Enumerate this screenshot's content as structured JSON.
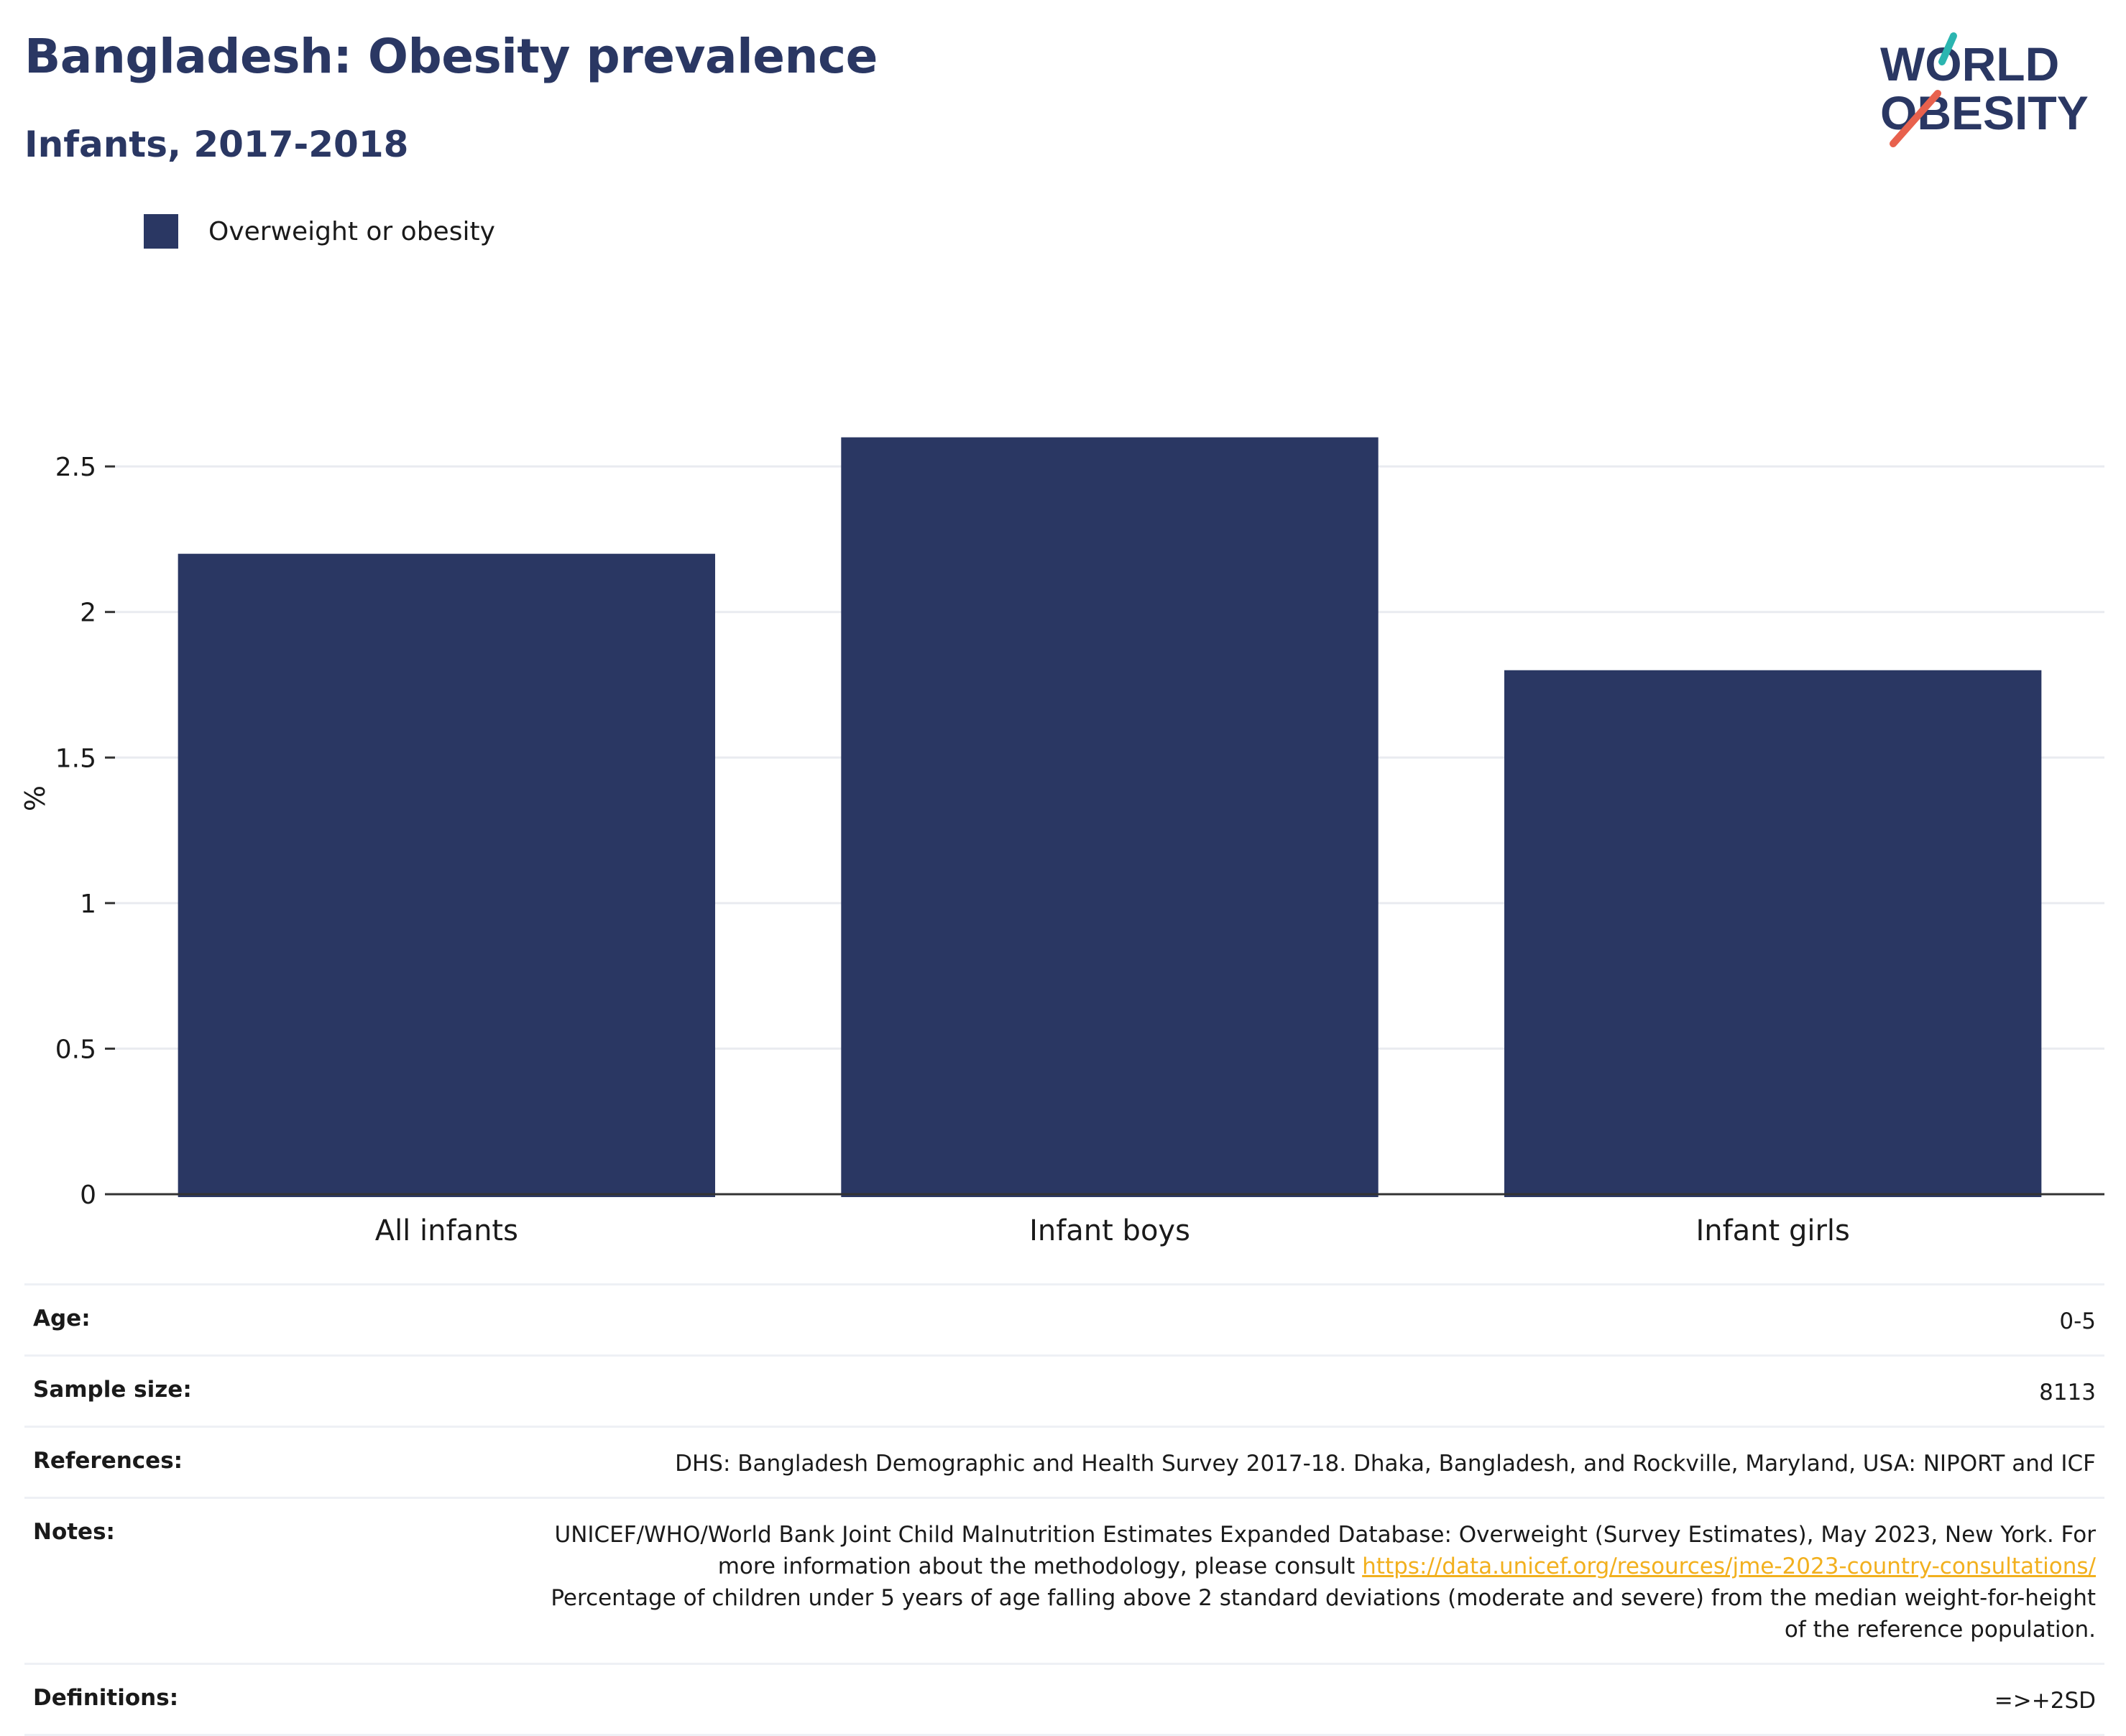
{
  "header": {
    "title": "Bangladesh: Obesity prevalence",
    "subtitle": "Infants, 2017-2018"
  },
  "logo": {
    "line1": "WORLD",
    "line2": "OBESITY",
    "colors": {
      "text": "#2a3763",
      "teal": "#2bb5b0",
      "coral": "#e8614d"
    }
  },
  "chart_data": {
    "type": "bar",
    "categories": [
      "All infants",
      "Infant boys",
      "Infant girls"
    ],
    "series": [
      {
        "name": "Overweight or obesity",
        "values": [
          2.2,
          2.6,
          1.8
        ],
        "color": "#2a3763"
      }
    ],
    "title": "Bangladesh: Obesity prevalence",
    "subtitle": "Infants, 2017-2018",
    "xlabel": "",
    "ylabel": "%",
    "ylim": [
      0,
      2.72
    ],
    "yticks": [
      0,
      0.5,
      1,
      1.5,
      2,
      2.5
    ],
    "ytick_labels": [
      "0",
      "0.5",
      "1",
      "1.5",
      "2",
      "2.5"
    ],
    "grid": true,
    "legend_position": "top-left"
  },
  "info": {
    "age": {
      "label": "Age:",
      "value": "0-5"
    },
    "sample_size": {
      "label": "Sample size:",
      "value": "8113"
    },
    "references": {
      "label": "References:",
      "value": "DHS: Bangladesh Demographic and Health Survey 2017-18. Dhaka, Bangladesh, and Rockville, Maryland, USA: NIPORT and ICF"
    },
    "notes": {
      "label": "Notes:",
      "text_before": "UNICEF/WHO/World Bank Joint Child Malnutrition Estimates Expanded Database: Overweight (Survey Estimates), May 2023, New York. For more information about the methodology, please consult ",
      "link": "https://data.unicef.org/resources/jme-2023-country-consultations/",
      "text_after": "Percentage of children under 5 years of age falling above 2 standard deviations (moderate and severe) from the median weight-for-height of the reference population."
    },
    "definitions": {
      "label": "Definitions:",
      "value": "=>+2SD"
    }
  }
}
